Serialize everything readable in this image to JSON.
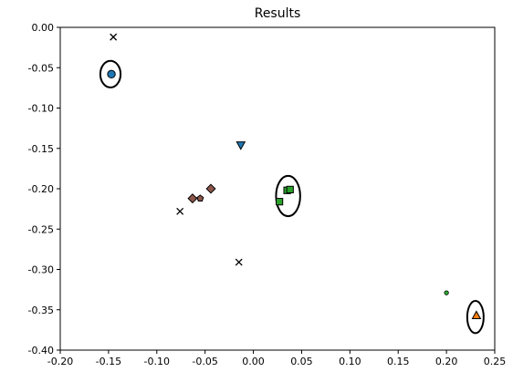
{
  "chart_data": {
    "type": "scatter",
    "title": "Results",
    "xlabel": "",
    "ylabel": "",
    "xlim": [
      -0.2,
      0.25
    ],
    "ylim": [
      -0.4,
      0.0
    ],
    "grid": false,
    "x_ticks": [
      "-0.20",
      "-0.15",
      "-0.10",
      "-0.05",
      "0.00",
      "0.05",
      "0.10",
      "0.15",
      "0.20",
      "0.25"
    ],
    "x_tick_values": [
      -0.2,
      -0.15,
      -0.1,
      -0.05,
      0.0,
      0.05,
      0.1,
      0.15,
      0.2,
      0.25
    ],
    "y_ticks": [
      "0.00",
      "-0.05",
      "-0.10",
      "-0.15",
      "-0.20",
      "-0.25",
      "-0.30",
      "-0.35",
      "-0.40"
    ],
    "y_tick_values": [
      0.0,
      -0.05,
      -0.1,
      -0.15,
      -0.2,
      -0.25,
      -0.3,
      -0.35,
      -0.4
    ],
    "points": [
      {
        "marker": "x",
        "color": "#000000",
        "x": -0.145,
        "y": -0.012
      },
      {
        "marker": "x",
        "color": "#000000",
        "x": -0.076,
        "y": -0.228
      },
      {
        "marker": "x",
        "color": "#000000",
        "x": -0.015,
        "y": -0.291
      },
      {
        "marker": "circle",
        "color": "#1f77b4",
        "x": -0.147,
        "y": -0.058
      },
      {
        "marker": "triangle-down",
        "color": "#1f77b4",
        "x": -0.013,
        "y": -0.146
      },
      {
        "marker": "diamond",
        "color": "#8c564b",
        "x": -0.044,
        "y": -0.2
      },
      {
        "marker": "diamond",
        "color": "#8c564b",
        "x": -0.063,
        "y": -0.212
      },
      {
        "marker": "pentagon",
        "color": "#8c564b",
        "x": -0.055,
        "y": -0.212
      },
      {
        "marker": "square",
        "color": "#2ca02c",
        "x": 0.035,
        "y": -0.202
      },
      {
        "marker": "square",
        "color": "#2ca02c",
        "x": 0.038,
        "y": -0.201
      },
      {
        "marker": "square",
        "color": "#2ca02c",
        "x": 0.027,
        "y": -0.216
      },
      {
        "marker": "small-dot",
        "color": "#2ca02c",
        "x": 0.2,
        "y": -0.329
      },
      {
        "marker": "triangle-up",
        "color": "#ff7f0e",
        "x": 0.231,
        "y": -0.357
      }
    ],
    "circles": [
      {
        "cx": -0.148,
        "cy": -0.058,
        "rx": 0.0105,
        "ry": 0.0165
      },
      {
        "cx": 0.036,
        "cy": -0.209,
        "rx": 0.0125,
        "ry": 0.025
      },
      {
        "cx": 0.23,
        "cy": -0.359,
        "rx": 0.0085,
        "ry": 0.02
      }
    ]
  }
}
